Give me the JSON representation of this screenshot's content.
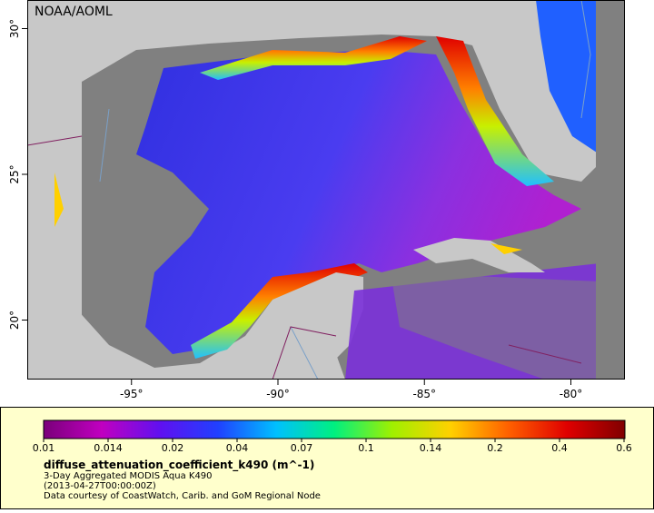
{
  "map": {
    "title": "NOAA/AOML",
    "lon_ticks": [
      {
        "value": -95,
        "label": "-95°"
      },
      {
        "value": -90,
        "label": "-90°"
      },
      {
        "value": -85,
        "label": "-85°"
      },
      {
        "value": -80,
        "label": "-80°"
      }
    ],
    "lat_ticks": [
      {
        "value": 30,
        "label": "30°"
      },
      {
        "value": 25,
        "label": "25°"
      },
      {
        "value": 20,
        "label": "20°"
      }
    ]
  },
  "colorbar": {
    "ticks": [
      0.01,
      0.014,
      0.02,
      0.04,
      0.07,
      0.1,
      0.14,
      0.2,
      0.4,
      0.6
    ]
  },
  "caption": {
    "variable": "diffuse_attenuation_coefficient_k490 (m^-1)",
    "product": "3-Day Aggregated MODIS Aqua K490",
    "time": "(2013-04-27T00:00:00Z)",
    "credit": "Data courtesy of CoastWatch, Carib. and GoM Regional Node"
  }
}
